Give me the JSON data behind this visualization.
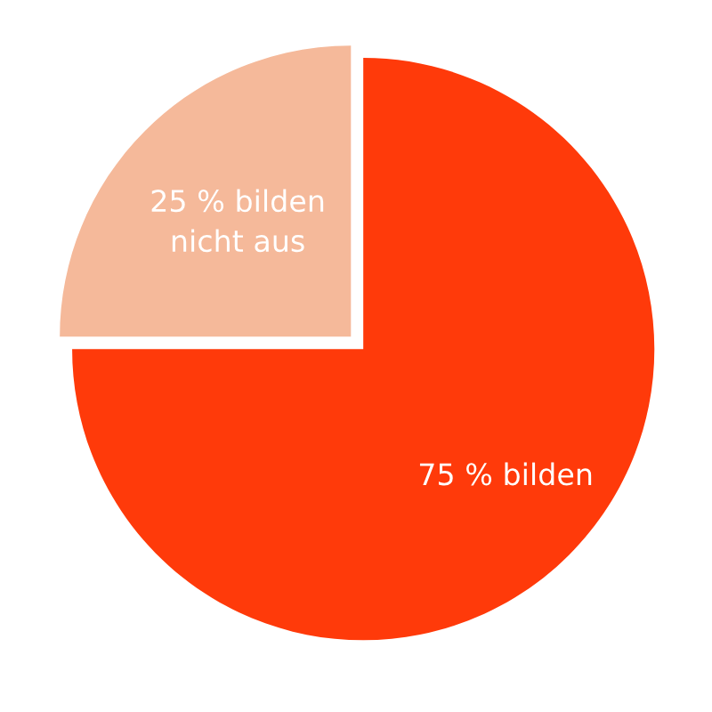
{
  "chart_data": {
    "type": "pie",
    "categories": [
      "75 % bilden",
      "25 % bilden\nnicht aus"
    ],
    "values": [
      75,
      25
    ],
    "colors": [
      "#ff3a0a",
      "#f5b99a"
    ],
    "legend": false
  }
}
